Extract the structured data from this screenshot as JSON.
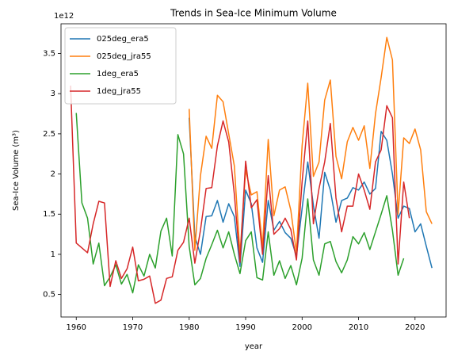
{
  "chart_data": {
    "type": "line",
    "title": "Trends in Sea-Ice Minimum Volume",
    "xlabel": "year",
    "ylabel": "Sea-Ice Volume (m³)",
    "offset_label": "1e12",
    "x": [
      1959,
      1960,
      1961,
      1962,
      1963,
      1964,
      1965,
      1966,
      1967,
      1968,
      1969,
      1970,
      1971,
      1972,
      1973,
      1974,
      1975,
      1976,
      1977,
      1978,
      1979,
      1980,
      1981,
      1982,
      1983,
      1984,
      1985,
      1986,
      1987,
      1988,
      1989,
      1990,
      1991,
      1992,
      1993,
      1994,
      1995,
      1996,
      1997,
      1998,
      1999,
      2000,
      2001,
      2002,
      2003,
      2004,
      2005,
      2006,
      2007,
      2008,
      2009,
      2010,
      2011,
      2012,
      2013,
      2014,
      2015,
      2016,
      2017,
      2018,
      2019,
      2020,
      2021,
      2022,
      2023
    ],
    "series": [
      {
        "name": "025deg_era5",
        "color": "#1f77b4",
        "values": [
          null,
          null,
          null,
          null,
          null,
          null,
          null,
          null,
          null,
          null,
          null,
          null,
          null,
          null,
          null,
          null,
          null,
          null,
          null,
          null,
          null,
          2.7,
          1.22,
          1.0,
          1.47,
          1.48,
          1.67,
          1.4,
          1.63,
          1.47,
          0.85,
          1.8,
          1.63,
          1.08,
          0.9,
          1.67,
          1.3,
          1.41,
          1.27,
          1.2,
          0.98,
          1.57,
          2.15,
          1.61,
          1.2,
          2.02,
          1.8,
          1.4,
          1.67,
          1.7,
          1.83,
          1.8,
          1.9,
          1.75,
          1.82,
          2.53,
          2.42,
          2.0,
          1.45,
          1.6,
          1.57,
          1.28,
          1.38,
          1.1,
          0.83
        ]
      },
      {
        "name": "025deg_jra55",
        "color": "#ff7f0e",
        "values": [
          null,
          null,
          null,
          null,
          null,
          null,
          null,
          null,
          null,
          null,
          null,
          null,
          null,
          null,
          null,
          null,
          null,
          null,
          null,
          null,
          null,
          2.81,
          1.05,
          1.98,
          2.47,
          2.32,
          2.98,
          2.9,
          2.5,
          2.1,
          1.0,
          2.05,
          1.74,
          1.78,
          1.1,
          2.43,
          1.48,
          1.8,
          1.84,
          1.55,
          1.02,
          2.35,
          3.13,
          1.97,
          2.15,
          2.92,
          3.17,
          2.22,
          1.94,
          2.4,
          2.58,
          2.42,
          2.6,
          2.07,
          2.75,
          3.2,
          3.7,
          3.42,
          1.5,
          2.45,
          2.38,
          2.56,
          2.3,
          1.53,
          1.38
        ]
      },
      {
        "name": "1deg_era5",
        "color": "#2ca02c",
        "values": [
          null,
          2.76,
          1.64,
          1.45,
          0.88,
          1.14,
          0.61,
          0.72,
          0.87,
          0.63,
          0.75,
          0.52,
          0.87,
          0.73,
          1.0,
          0.83,
          1.29,
          1.45,
          0.98,
          2.49,
          2.25,
          1.1,
          0.62,
          0.7,
          0.95,
          1.12,
          1.3,
          1.08,
          1.28,
          1.0,
          0.76,
          1.17,
          1.28,
          0.71,
          0.68,
          1.28,
          0.74,
          0.92,
          0.7,
          0.86,
          0.62,
          0.95,
          1.69,
          0.93,
          0.74,
          1.13,
          1.16,
          0.91,
          0.77,
          0.93,
          1.22,
          1.13,
          1.27,
          1.06,
          1.28,
          1.5,
          1.73,
          1.3,
          0.74,
          0.95,
          null,
          null,
          null,
          null,
          null
        ]
      },
      {
        "name": "1deg_jra55",
        "color": "#d62728",
        "values": [
          3.1,
          1.14,
          1.08,
          1.02,
          1.38,
          1.66,
          1.64,
          0.6,
          0.92,
          0.7,
          0.82,
          1.09,
          0.67,
          0.69,
          0.73,
          0.39,
          0.43,
          0.7,
          0.72,
          1.05,
          1.15,
          1.45,
          0.89,
          1.3,
          1.82,
          1.83,
          2.35,
          2.66,
          2.4,
          1.75,
          0.9,
          2.16,
          1.58,
          1.68,
          1.0,
          1.98,
          1.25,
          1.32,
          1.45,
          1.31,
          0.93,
          1.9,
          2.66,
          1.38,
          1.82,
          2.15,
          2.63,
          1.7,
          1.28,
          1.6,
          1.6,
          2.0,
          1.8,
          1.56,
          2.15,
          2.3,
          2.85,
          2.7,
          0.88,
          1.9,
          1.45,
          null,
          null,
          null,
          null
        ]
      }
    ],
    "xlim": [
      1957.3,
      2025.5
    ],
    "ylim": [
      0.22,
      3.87
    ],
    "xticks": [
      1960,
      1970,
      1980,
      1990,
      2000,
      2010,
      2020
    ],
    "yticks": [
      0.5,
      1.0,
      1.5,
      2.0,
      2.5,
      3.0,
      3.5
    ],
    "legend": "upper-left",
    "grid": false
  }
}
